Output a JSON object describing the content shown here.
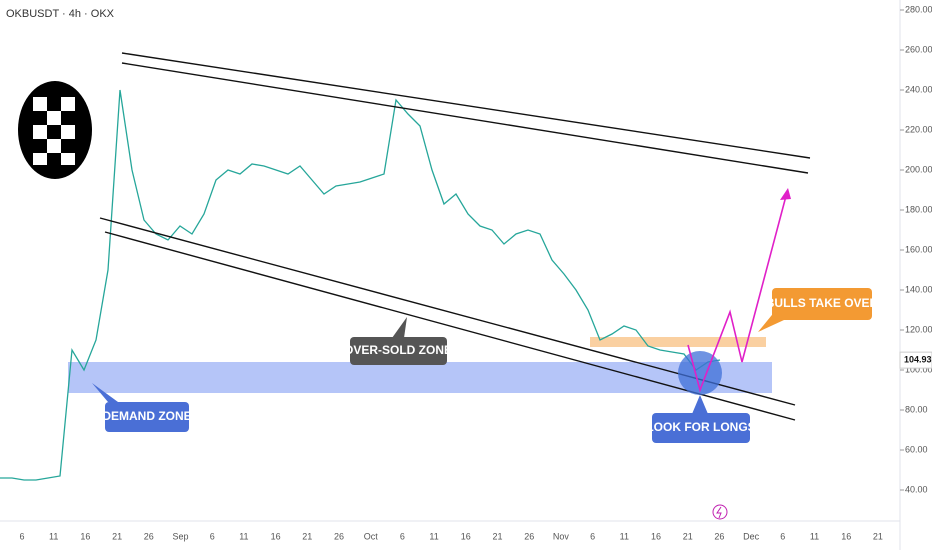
{
  "chart_data": {
    "type": "line",
    "title": "OKBUSDT · 4h · OKX",
    "series": [
      {
        "name": "OKBUSDT",
        "color": "#26a69a",
        "values": [
          46,
          46,
          45,
          45,
          46,
          47,
          110,
          100,
          115,
          150,
          240,
          200,
          175,
          168,
          165,
          172,
          168,
          178,
          195,
          200,
          198,
          203,
          202,
          200,
          198,
          202,
          195,
          188,
          192,
          193,
          194,
          196,
          198,
          235,
          228,
          222,
          200,
          183,
          188,
          178,
          172,
          170,
          163,
          168,
          170,
          168,
          155,
          148,
          140,
          130,
          115,
          118,
          122,
          120,
          112,
          110,
          109,
          108,
          100,
          104,
          105
        ]
      }
    ],
    "ylim": [
      25,
      285
    ],
    "yticks": [
      {
        "value": 40,
        "label": "40.00"
      },
      {
        "value": 60,
        "label": "60.00"
      },
      {
        "value": 80,
        "label": "80.00"
      },
      {
        "value": 100,
        "label": "100.00"
      },
      {
        "value": 120,
        "label": "120.00"
      },
      {
        "value": 140,
        "label": "140.00"
      },
      {
        "value": 160,
        "label": "160.00"
      },
      {
        "value": 180,
        "label": "180.00"
      },
      {
        "value": 200,
        "label": "200.00"
      },
      {
        "value": 220,
        "label": "220.00"
      },
      {
        "value": 240,
        "label": "240.00"
      },
      {
        "value": 260,
        "label": "260.00"
      },
      {
        "value": 280,
        "label": "280.00"
      }
    ],
    "x_labels": [
      "6",
      "11",
      "16",
      "21",
      "26",
      "Sep",
      "6",
      "11",
      "16",
      "21",
      "26",
      "Oct",
      "6",
      "11",
      "16",
      "21",
      "26",
      "Nov",
      "6",
      "11",
      "16",
      "21",
      "26",
      "Dec",
      "6",
      "11",
      "16",
      "21"
    ],
    "last_price": 104.93,
    "annotations": [
      "DEMAND ZONE",
      "OVER-SOLD ZONE",
      "LOOK FOR LONGS",
      "BULLS TAKE OVER"
    ]
  }
}
